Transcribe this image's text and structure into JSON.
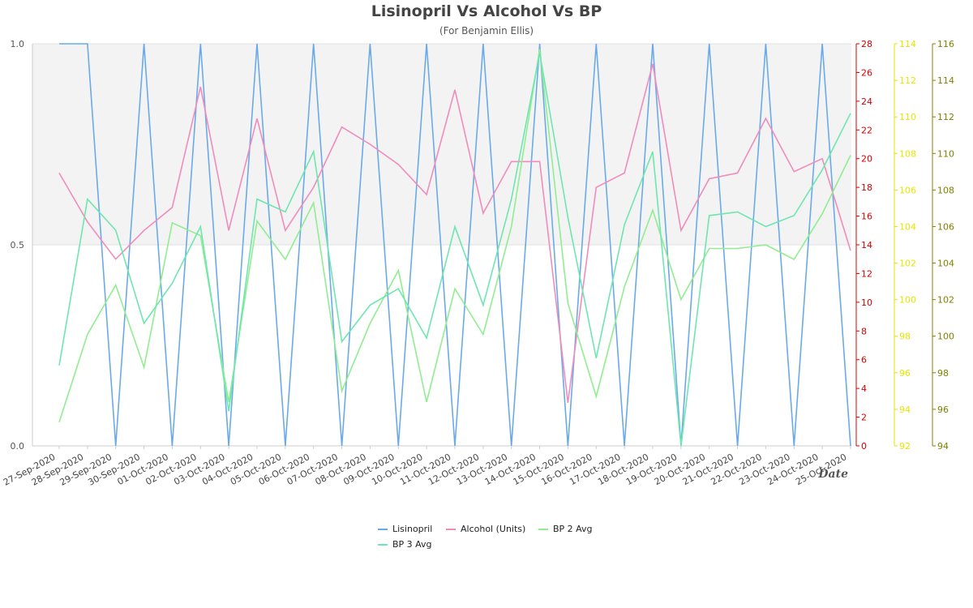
{
  "chart_data": {
    "type": "line",
    "title": "Lisinopril Vs Alcohol Vs BP",
    "subtitle": "(For Benjamin Ellis)",
    "xlabel": "Date",
    "categories": [
      "27-Sep-2020",
      "28-Sep-2020",
      "29-Sep-2020",
      "30-Sep-2020",
      "01-Oct-2020",
      "02-Oct-2020",
      "03-Oct-2020",
      "04-Oct-2020",
      "05-Oct-2020",
      "06-Oct-2020",
      "07-Oct-2020",
      "08-Oct-2020",
      "09-Oct-2020",
      "10-Oct-2020",
      "11-Oct-2020",
      "12-Oct-2020",
      "13-Oct-2020",
      "14-Oct-2020",
      "15-Oct-2020",
      "16-Oct-2020",
      "17-Oct-2020",
      "18-Oct-2020",
      "19-Oct-2020",
      "20-Oct-2020",
      "21-Oct-2020",
      "22-Oct-2020",
      "23-Oct-2020",
      "24-Oct-2020",
      "25-Oct-2020"
    ],
    "axes": {
      "y_left": {
        "range": [
          0,
          1
        ],
        "ticks": [
          "0.0",
          "0.5",
          "1.0"
        ],
        "color": "#555555"
      },
      "y_right1": {
        "range": [
          0,
          28
        ],
        "ticks": [
          "0",
          "2",
          "4",
          "6",
          "8",
          "10",
          "12",
          "14",
          "16",
          "18",
          "20",
          "22",
          "24",
          "26",
          "28"
        ],
        "color": "#d40000"
      },
      "y_right2": {
        "range": [
          92,
          114
        ],
        "ticks": [
          "92",
          "94",
          "96",
          "98",
          "100",
          "102",
          "104",
          "106",
          "108",
          "110",
          "112",
          "114"
        ],
        "color": "#e6e600"
      },
      "y_right3": {
        "range": [
          94,
          116
        ],
        "ticks": [
          "94",
          "96",
          "98",
          "100",
          "102",
          "104",
          "106",
          "108",
          "110",
          "112",
          "114",
          "116"
        ],
        "color": "#808000"
      }
    },
    "series": [
      {
        "name": "Lisinopril",
        "axis": "y_left",
        "color": "#6aaae8",
        "values": [
          1,
          1,
          0,
          1,
          0,
          1,
          0,
          1,
          0,
          1,
          0,
          1,
          0,
          1,
          0,
          1,
          0,
          1,
          0,
          1,
          0,
          1,
          0,
          1,
          0,
          1,
          0,
          1,
          0
        ]
      },
      {
        "name": "Alcohol (Units)",
        "axis": "y_right1",
        "color": "#f08cbc",
        "values": [
          19,
          15.6,
          13,
          15,
          16.6,
          25,
          15,
          22.8,
          15,
          18,
          22.2,
          21,
          19.6,
          17.5,
          24.8,
          16.2,
          19.8,
          19.8,
          3,
          18,
          19,
          26.6,
          15,
          18.6,
          19,
          22.8,
          19.1,
          20,
          13.6
        ]
      },
      {
        "name": "BP 2 Avg",
        "axis": "y_right2",
        "color": "#90ee90",
        "values": [
          93.3,
          98.1,
          100.8,
          96.3,
          104.2,
          103.5,
          94.4,
          104.3,
          102.2,
          105.3,
          95,
          98.7,
          101.6,
          94.4,
          100.6,
          98.1,
          104,
          113.7,
          99.8,
          94.7,
          100.7,
          104.9,
          100,
          102.8,
          102.8,
          103,
          102.2,
          104.7,
          107.9
        ]
      },
      {
        "name": "BP 3 Avg",
        "axis": "y_right3",
        "color": "#6ee6b0",
        "values": [
          98.4,
          107.5,
          105.8,
          100.7,
          102.9,
          106,
          95.9,
          107.5,
          106.8,
          110.1,
          99.7,
          101.7,
          102.6,
          99.9,
          106,
          101.7,
          107.5,
          115.5,
          106.5,
          98.8,
          106.1,
          110.1,
          94,
          106.6,
          106.8,
          106,
          106.6,
          109.1,
          112.2
        ]
      }
    ]
  }
}
